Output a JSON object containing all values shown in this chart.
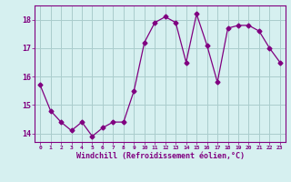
{
  "x": [
    0,
    1,
    2,
    3,
    4,
    5,
    6,
    7,
    8,
    9,
    10,
    11,
    12,
    13,
    14,
    15,
    16,
    17,
    18,
    19,
    20,
    21,
    22,
    23
  ],
  "y": [
    15.7,
    14.8,
    14.4,
    14.1,
    14.4,
    13.9,
    14.2,
    14.4,
    14.4,
    15.5,
    17.2,
    17.9,
    18.1,
    17.9,
    16.5,
    18.2,
    17.1,
    15.8,
    17.7,
    17.8,
    17.8,
    17.6,
    17.0,
    16.5
  ],
  "line_color": "#800080",
  "marker": "D",
  "marker_size": 2.5,
  "bg_color": "#d6f0f0",
  "grid_color": "#aacccc",
  "xlabel": "Windchill (Refroidissement éolien,°C)",
  "xlabel_color": "#800080",
  "tick_color": "#800080",
  "ylim": [
    13.7,
    18.5
  ],
  "xlim": [
    -0.5,
    23.5
  ],
  "yticks": [
    14,
    15,
    16,
    17,
    18
  ],
  "xticks": [
    0,
    1,
    2,
    3,
    4,
    5,
    6,
    7,
    8,
    9,
    10,
    11,
    12,
    13,
    14,
    15,
    16,
    17,
    18,
    19,
    20,
    21,
    22,
    23
  ],
  "xtick_labels": [
    "0",
    "1",
    "2",
    "3",
    "4",
    "5",
    "6",
    "7",
    "8",
    "9",
    "10",
    "11",
    "12",
    "13",
    "14",
    "15",
    "16",
    "17",
    "18",
    "19",
    "20",
    "21",
    "22",
    "23"
  ],
  "spine_color": "#800080",
  "title_color": "#800080"
}
